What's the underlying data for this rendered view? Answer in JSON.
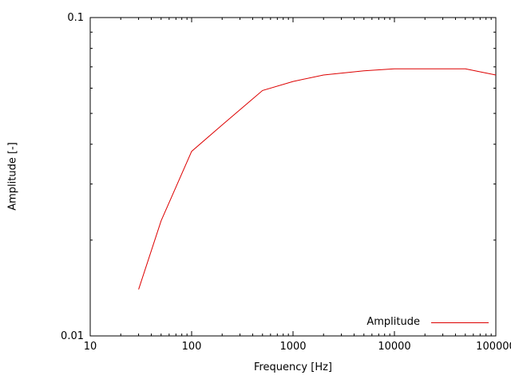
{
  "chart_data": {
    "type": "line",
    "title": "",
    "xlabel": "Frequency [Hz]",
    "ylabel": "Amplitude [-]",
    "xscale": "log",
    "yscale": "log",
    "xlim": [
      10,
      100000
    ],
    "ylim": [
      0.01,
      0.1
    ],
    "x_ticks": [
      10,
      100,
      1000,
      10000,
      100000
    ],
    "x_tick_labels": [
      "10",
      "100",
      "1000",
      "10000",
      "100000"
    ],
    "y_ticks": [
      0.01,
      0.1
    ],
    "y_tick_labels": [
      "0.01",
      "0.1"
    ],
    "grid": false,
    "legend_position": "bottom-right",
    "axis_color": "#000000",
    "background_color": "#ffffff",
    "series": [
      {
        "name": "Amplitude",
        "color": "#dd0000",
        "x": [
          30,
          50,
          100,
          200,
          500,
          1000,
          2000,
          5000,
          10000,
          20000,
          50000,
          100000
        ],
        "y": [
          0.014,
          0.023,
          0.038,
          0.046,
          0.059,
          0.063,
          0.066,
          0.068,
          0.069,
          0.069,
          0.069,
          0.066
        ]
      }
    ]
  }
}
